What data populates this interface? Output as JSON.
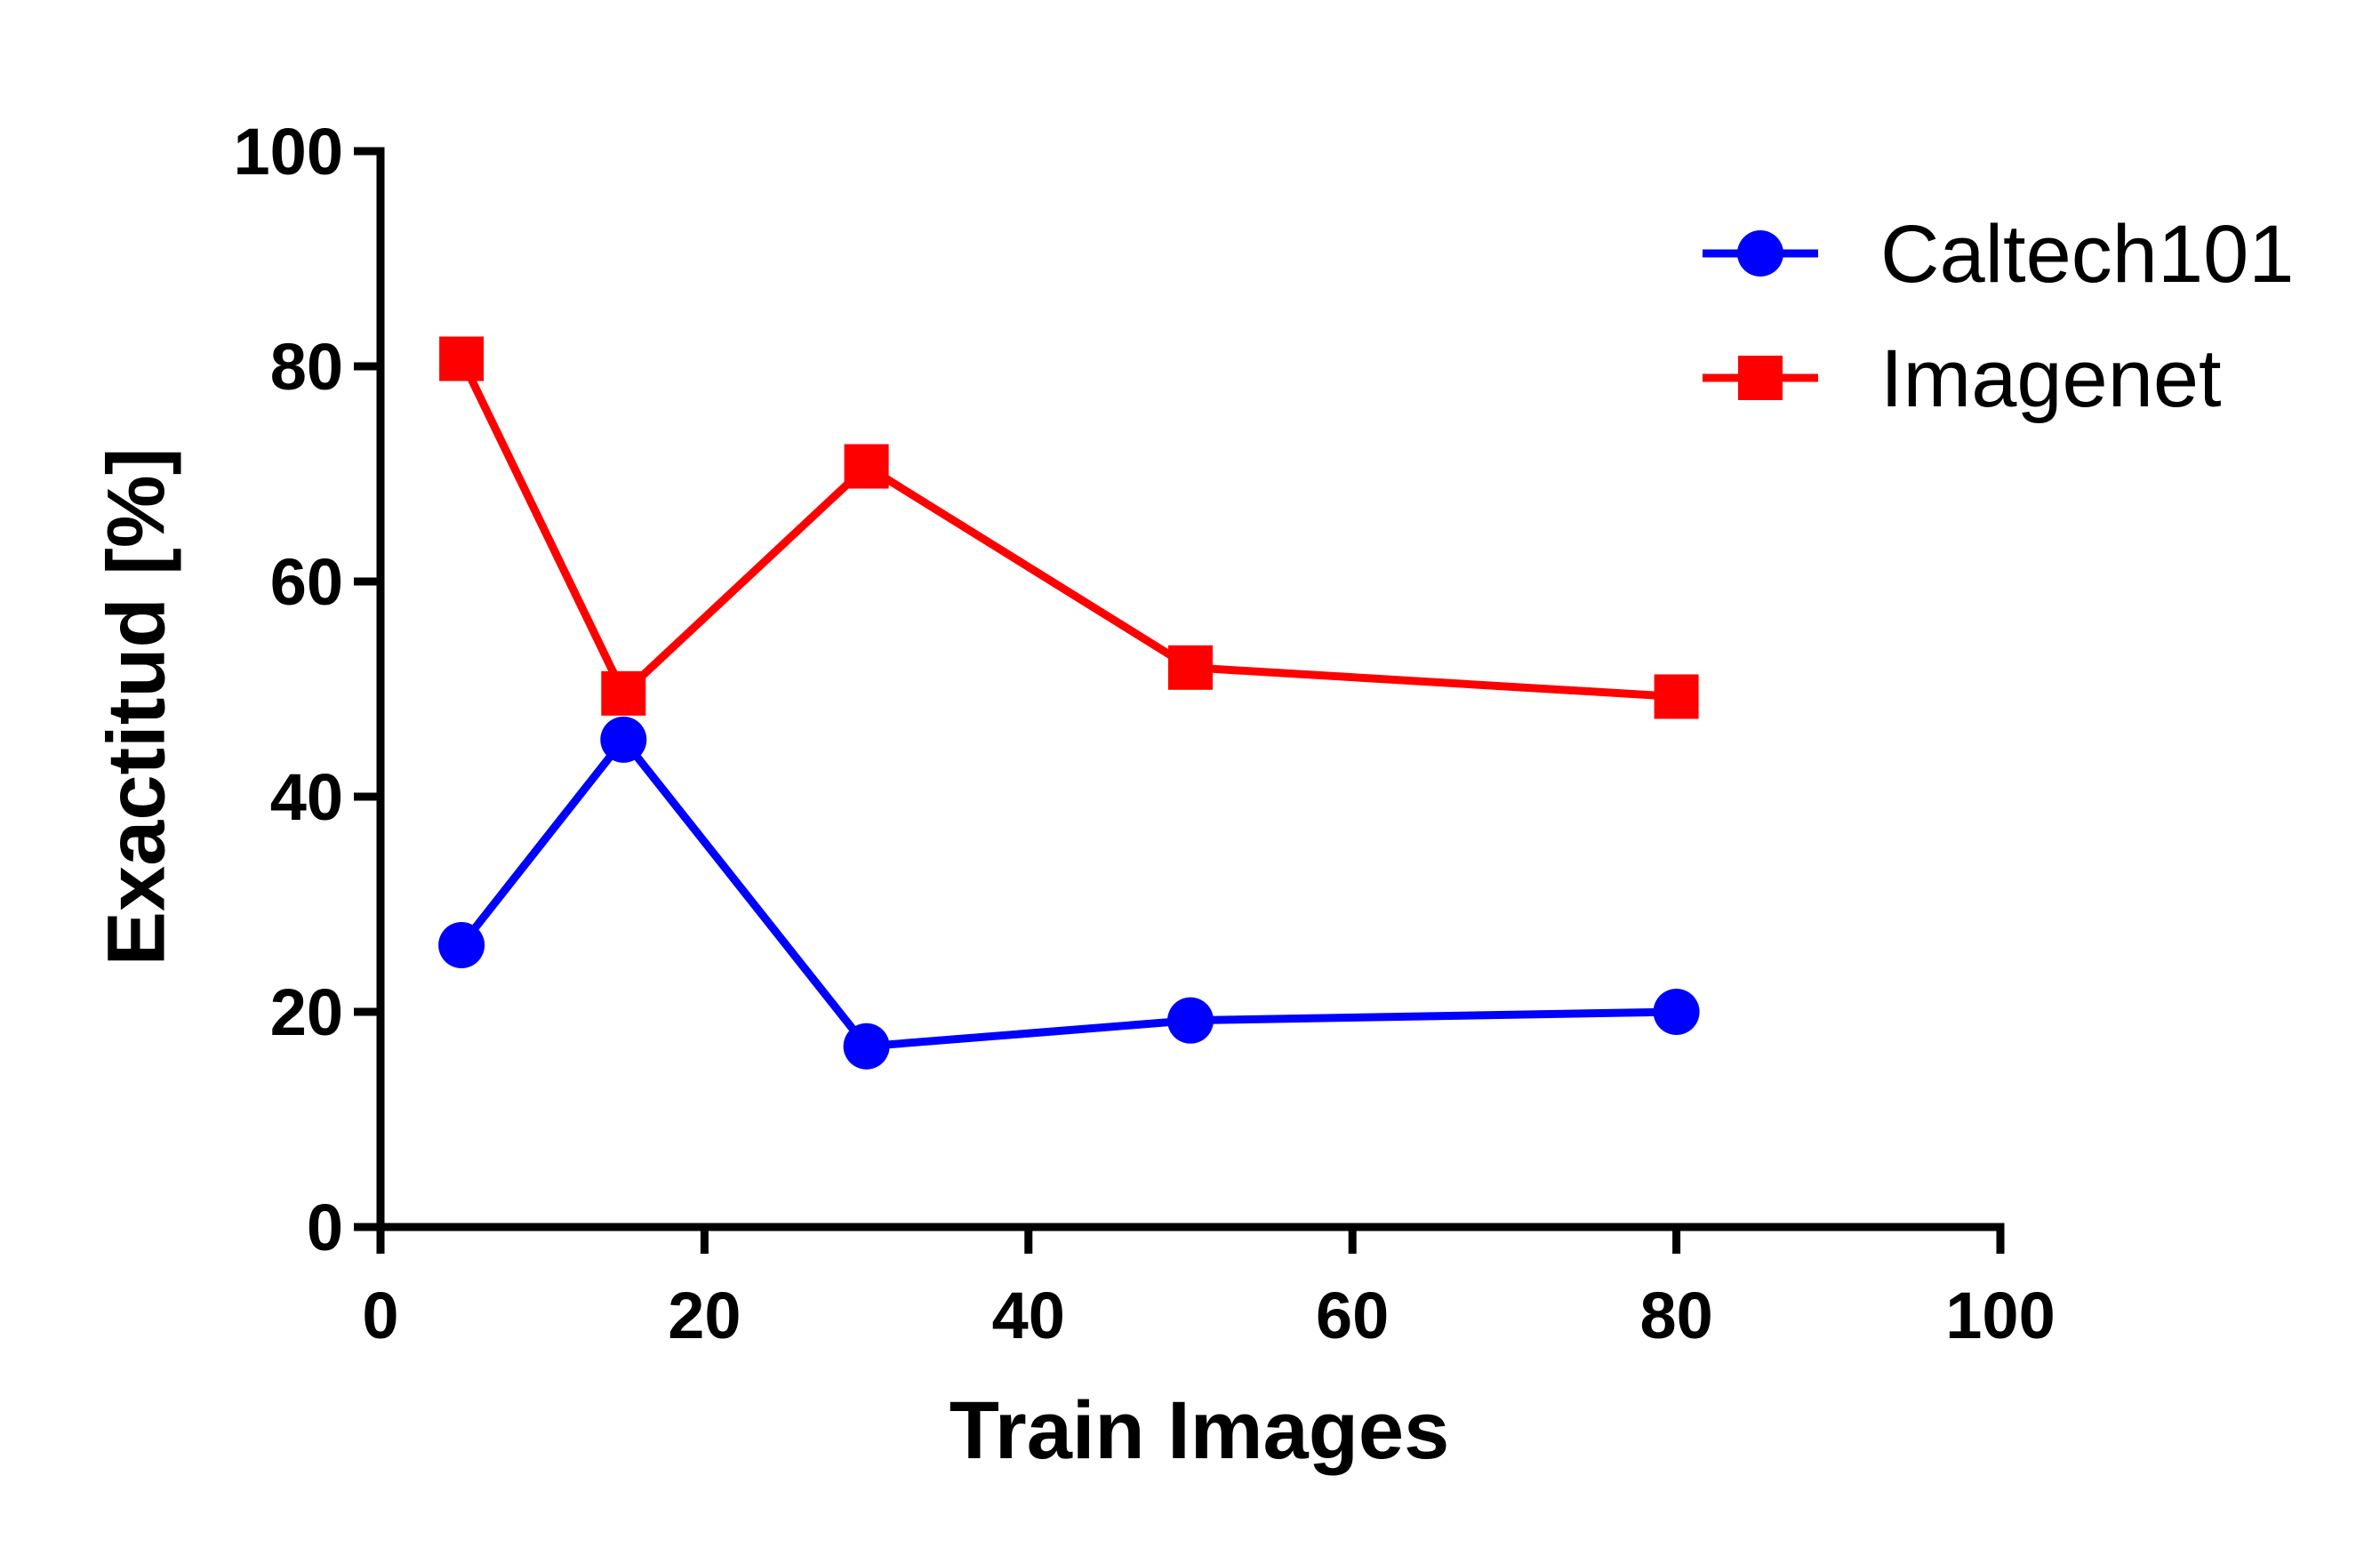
{
  "chart_data": {
    "type": "line",
    "xlabel": "Train Images",
    "ylabel": "Exactitud [%]",
    "xlim": [
      0,
      100
    ],
    "ylim": [
      0,
      100
    ],
    "xticks": [
      0,
      20,
      40,
      60,
      80,
      100
    ],
    "yticks": [
      0,
      20,
      40,
      60,
      80,
      100
    ],
    "grid": false,
    "legend_position": "top-right",
    "series": [
      {
        "name": "Caltech101",
        "color": "#0000ff",
        "marker": "circle",
        "x": [
          5,
          15,
          30,
          50,
          80
        ],
        "y": [
          26.2,
          45.3,
          16.8,
          19.2,
          20.0
        ]
      },
      {
        "name": "Imagenet",
        "color": "#ff0000",
        "marker": "square",
        "x": [
          5,
          15,
          30,
          50,
          80
        ],
        "y": [
          80.7,
          49.6,
          70.7,
          52.0,
          49.3
        ]
      }
    ]
  }
}
